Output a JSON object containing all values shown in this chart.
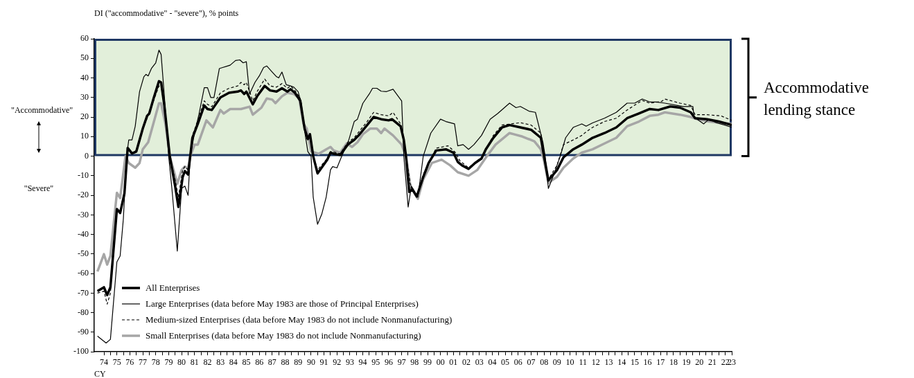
{
  "chart_data": {
    "type": "line",
    "ylabel": "DI (\"accommodative\" - \"severe\"), % points",
    "xlabel": "CY",
    "xlim": [
      "1973-10",
      "2023-01"
    ],
    "ylim": [
      -100,
      60
    ],
    "yticks": [
      -100,
      -90,
      -80,
      -70,
      -60,
      -50,
      -40,
      -30,
      -20,
      -10,
      0,
      10,
      20,
      30,
      40,
      50,
      60
    ],
    "xticks": [
      {
        "value": "1974-07",
        "label": "74"
      },
      {
        "value": "1975-01",
        "label": null
      },
      {
        "value": "1975-07",
        "label": "75"
      },
      {
        "value": "1976-01",
        "label": null
      },
      {
        "value": "1976-07",
        "label": "76"
      },
      {
        "value": "1977-01",
        "label": null
      },
      {
        "value": "1977-07",
        "label": "77"
      },
      {
        "value": "1978-01",
        "label": null
      },
      {
        "value": "1978-07",
        "label": "78"
      },
      {
        "value": "1979-01",
        "label": null
      },
      {
        "value": "1979-07",
        "label": "79"
      },
      {
        "value": "1980-01",
        "label": null
      },
      {
        "value": "1980-07",
        "label": "80"
      },
      {
        "value": "1981-01",
        "label": null
      },
      {
        "value": "1981-07",
        "label": "81"
      },
      {
        "value": "1982-01",
        "label": null
      },
      {
        "value": "1982-07",
        "label": "82"
      },
      {
        "value": "1983-01",
        "label": null
      },
      {
        "value": "1983-07",
        "label": "83"
      },
      {
        "value": "1984-01",
        "label": null
      },
      {
        "value": "1984-07",
        "label": "84"
      },
      {
        "value": "1985-01",
        "label": null
      },
      {
        "value": "1985-07",
        "label": "85"
      },
      {
        "value": "1986-01",
        "label": null
      },
      {
        "value": "1986-07",
        "label": "86"
      },
      {
        "value": "1987-01",
        "label": null
      },
      {
        "value": "1987-07",
        "label": "87"
      },
      {
        "value": "1988-01",
        "label": null
      },
      {
        "value": "1988-07",
        "label": "88"
      },
      {
        "value": "1989-01",
        "label": null
      },
      {
        "value": "1989-07",
        "label": "89"
      },
      {
        "value": "1990-01",
        "label": null
      },
      {
        "value": "1990-07",
        "label": "90"
      },
      {
        "value": "1991-01",
        "label": null
      },
      {
        "value": "1991-07",
        "label": "91"
      },
      {
        "value": "1992-01",
        "label": null
      },
      {
        "value": "1992-07",
        "label": "92"
      },
      {
        "value": "1993-01",
        "label": null
      },
      {
        "value": "1993-07",
        "label": "93"
      },
      {
        "value": "1994-01",
        "label": null
      },
      {
        "value": "1994-07",
        "label": "94"
      },
      {
        "value": "1995-01",
        "label": null
      },
      {
        "value": "1995-07",
        "label": "95"
      },
      {
        "value": "1996-01",
        "label": null
      },
      {
        "value": "1996-07",
        "label": "96"
      },
      {
        "value": "1997-01",
        "label": null
      },
      {
        "value": "1997-07",
        "label": "97"
      },
      {
        "value": "1998-01",
        "label": null
      },
      {
        "value": "1998-07",
        "label": "98"
      },
      {
        "value": "1999-01",
        "label": null
      },
      {
        "value": "1999-07",
        "label": "99"
      },
      {
        "value": "2000-01",
        "label": null
      },
      {
        "value": "2000-07",
        "label": "00"
      },
      {
        "value": "2001-01",
        "label": null
      },
      {
        "value": "2001-07",
        "label": "01"
      },
      {
        "value": "2002-01",
        "label": null
      },
      {
        "value": "2002-07",
        "label": "02"
      },
      {
        "value": "2003-01",
        "label": null
      },
      {
        "value": "2003-07",
        "label": "03"
      },
      {
        "value": "2004-01",
        "label": null
      },
      {
        "value": "2004-07",
        "label": "04"
      },
      {
        "value": "2005-01",
        "label": null
      },
      {
        "value": "2005-07",
        "label": "05"
      },
      {
        "value": "2006-01",
        "label": null
      },
      {
        "value": "2006-07",
        "label": "06"
      },
      {
        "value": "2007-01",
        "label": null
      },
      {
        "value": "2007-07",
        "label": "07"
      },
      {
        "value": "2008-01",
        "label": null
      },
      {
        "value": "2008-07",
        "label": "08"
      },
      {
        "value": "2009-01",
        "label": null
      },
      {
        "value": "2009-07",
        "label": "09"
      },
      {
        "value": "2010-01",
        "label": null
      },
      {
        "value": "2010-07",
        "label": "10"
      },
      {
        "value": "2011-01",
        "label": null
      },
      {
        "value": "2011-07",
        "label": "11"
      },
      {
        "value": "2012-01",
        "label": null
      },
      {
        "value": "2012-07",
        "label": "12"
      },
      {
        "value": "2013-01",
        "label": null
      },
      {
        "value": "2013-07",
        "label": "13"
      },
      {
        "value": "2014-01",
        "label": null
      },
      {
        "value": "2014-07",
        "label": "14"
      },
      {
        "value": "2015-01",
        "label": null
      },
      {
        "value": "2015-07",
        "label": "15"
      },
      {
        "value": "2016-01",
        "label": null
      },
      {
        "value": "2016-07",
        "label": "16"
      },
      {
        "value": "2017-01",
        "label": null
      },
      {
        "value": "2017-07",
        "label": "17"
      },
      {
        "value": "2018-01",
        "label": null
      },
      {
        "value": "2018-07",
        "label": "18"
      },
      {
        "value": "2019-01",
        "label": null
      },
      {
        "value": "2019-07",
        "label": "19"
      },
      {
        "value": "2020-01",
        "label": null
      },
      {
        "value": "2020-07",
        "label": "20"
      },
      {
        "value": "2021-01",
        "label": null
      },
      {
        "value": "2021-07",
        "label": "21"
      },
      {
        "value": "2022-01",
        "label": null
      },
      {
        "value": "2022-07",
        "label": "22"
      },
      {
        "value": "2023-01",
        "label": "23"
      }
    ],
    "legend": "bottom left",
    "bands": [
      {
        "axis": "y",
        "from": 0,
        "to": 60,
        "label": "Accommodative lending stance",
        "color": "#e2efda"
      }
    ],
    "annotations": [
      "\"Accommodative\"",
      "\"Severe\""
    ],
    "series": [
      {
        "name": "All Enterprises",
        "color": "#000000",
        "line_style": "solid",
        "x": [
          "1974-01",
          "1974-07",
          "1974-10",
          "1975-01",
          "1975-07",
          "1975-10",
          "1976-02",
          "1976-05",
          "1976-09",
          "1977-01",
          "1977-07",
          "1977-11",
          "1978-01",
          "1978-05",
          "1978-10",
          "1978-12",
          "1979-03",
          "1979-08",
          "1980-01",
          "1980-04",
          "1980-08",
          "1980-10",
          "1981-01",
          "1981-03",
          "1981-05",
          "1981-10",
          "1982-04",
          "1982-07",
          "1982-11",
          "1983-07",
          "1984-03",
          "1984-11",
          "1985-02",
          "1985-05",
          "1985-07",
          "1986-01",
          "1986-05",
          "1986-12",
          "1987-05",
          "1987-11",
          "1988-04",
          "1988-09",
          "1988-12",
          "1989-04",
          "1989-09",
          "1990-01",
          "1990-04",
          "1990-06",
          "1990-09",
          "1991-01",
          "1991-10",
          "1992-01",
          "1992-04",
          "1992-10",
          "1993-05",
          "1993-11",
          "1994-04",
          "1994-11",
          "1995-05",
          "1995-12",
          "1996-07",
          "1996-10",
          "1997-06",
          "1997-09",
          "1997-11",
          "1998-02",
          "1998-05",
          "1998-09",
          "1999-03",
          "1999-08",
          "2000-03",
          "2000-12",
          "2001-07",
          "2001-11",
          "2002-03",
          "2002-09",
          "2003-03",
          "2003-09",
          "2004-01",
          "2004-08",
          "2005-04",
          "2005-11",
          "2006-09",
          "2007-07",
          "2008-04",
          "2008-07",
          "2008-11",
          "2009-07",
          "2010-01",
          "2010-10",
          "2011-06",
          "2012-04",
          "2013-03",
          "2014-02",
          "2014-12",
          "2015-11",
          "2016-09",
          "2017-05",
          "2018-04",
          "2019-01",
          "2019-11",
          "2020-03",
          "2021-02",
          "2022-01",
          "2023-01"
        ],
        "values": [
          -69,
          -67,
          -71,
          -67,
          -27,
          -29,
          -19,
          4.2,
          1.4,
          2.4,
          14.1,
          20.6,
          21.8,
          29.5,
          38.3,
          37.7,
          25.9,
          0,
          -15.3,
          -26,
          -10.6,
          -7.6,
          -9.4,
          0,
          9.4,
          16.5,
          25.9,
          24.1,
          23.6,
          30,
          32.4,
          33,
          33.6,
          31.8,
          33,
          26.5,
          30.6,
          35.9,
          33.6,
          33,
          34.7,
          33,
          34.2,
          32.4,
          28.3,
          14.1,
          8.8,
          11.2,
          0,
          -8.8,
          -1.8,
          1.8,
          1.2,
          0.6,
          5.9,
          8.3,
          11.2,
          15.9,
          20,
          18.9,
          18.3,
          18.9,
          15.3,
          8.3,
          0,
          -18.3,
          -17,
          -20.6,
          -10.6,
          -3.5,
          2.9,
          3.5,
          1.8,
          -2.9,
          -4.7,
          -6.5,
          -3.5,
          -1.2,
          3.5,
          9.4,
          14.7,
          15.9,
          14.7,
          13.5,
          9.4,
          0,
          -12.4,
          -7.1,
          -0.6,
          3.5,
          5.9,
          9.4,
          11.8,
          14.7,
          19.4,
          21.8,
          24.1,
          23.6,
          25.4,
          24.8,
          22.4,
          19.4,
          18.9,
          17.7,
          15.9
        ]
      },
      {
        "name": "Large Enterprises (data before May 1983 are those of Principal Enterprises)",
        "color": "#000000",
        "line_style": "solid",
        "x": [
          "1974-01",
          "1974-09",
          "1975-01",
          "1975-07",
          "1975-10",
          "1976-01",
          "1976-04",
          "1976-06",
          "1976-09",
          "1976-12",
          "1977-04",
          "1977-08",
          "1977-10",
          "1977-12",
          "1978-03",
          "1978-07",
          "1978-10",
          "1978-12",
          "1979-03",
          "1979-07",
          "1979-10",
          "1980-03",
          "1980-07",
          "1980-10",
          "1981-01",
          "1981-03",
          "1981-07",
          "1981-11",
          "1982-04",
          "1982-07",
          "1982-10",
          "1983-01",
          "1983-06",
          "1983-09",
          "1984-01",
          "1984-04",
          "1984-09",
          "1985-01",
          "1985-04",
          "1985-07",
          "1985-10",
          "1986-03",
          "1986-07",
          "1986-11",
          "1987-02",
          "1987-07",
          "1987-11",
          "1988-01",
          "1988-04",
          "1988-08",
          "1988-12",
          "1989-03",
          "1989-07",
          "1989-10",
          "1990-01",
          "1990-04",
          "1990-07",
          "1990-09",
          "1991-01",
          "1991-05",
          "1991-09",
          "1992-01",
          "1992-03",
          "1992-07",
          "1992-11",
          "1993-06",
          "1993-11",
          "1994-02",
          "1994-07",
          "1995-01",
          "1995-04",
          "1995-08",
          "1995-12",
          "1996-05",
          "1996-11",
          "1997-07",
          "1997-09",
          "1998-01",
          "1998-04",
          "1998-10",
          "1999-03",
          "1999-10",
          "2000-07",
          "2000-12",
          "2001-08",
          "2001-11",
          "2002-04",
          "2002-09",
          "2003-02",
          "2003-09",
          "2004-05",
          "2004-12",
          "2005-11",
          "2006-05",
          "2006-09",
          "2007-05",
          "2007-11",
          "2008-06",
          "2008-08",
          "2008-11",
          "2009-04",
          "2009-10",
          "2010-03",
          "2010-10",
          "2011-06",
          "2011-10",
          "2012-04",
          "2013-03",
          "2014-02",
          "2014-12",
          "2015-07",
          "2016-02",
          "2016-09",
          "2017-03",
          "2017-11",
          "2019-04",
          "2020-01",
          "2020-02",
          "2020-11",
          "2021-04",
          "2021-11",
          "2022-07",
          "2023-01"
        ],
        "values": [
          -92,
          -95.5,
          -93.6,
          -54,
          -51,
          -32,
          0,
          8.3,
          8.3,
          15.3,
          33,
          40.6,
          41.8,
          41,
          44.8,
          47.7,
          54.2,
          52,
          30.7,
          0,
          -16.5,
          -48.5,
          -16.5,
          -15.3,
          -20,
          0,
          11.8,
          21.2,
          35,
          35,
          30,
          30,
          44.8,
          45.3,
          46,
          46.5,
          48.9,
          49.2,
          47.7,
          48.3,
          31.8,
          37.7,
          41,
          45.3,
          46.1,
          43,
          40.6,
          40,
          43,
          36.5,
          35.9,
          35.3,
          33,
          27,
          13,
          2.4,
          0,
          -21,
          -34.8,
          -29.5,
          -21,
          -7,
          -5.3,
          -6,
          -0.6,
          8.3,
          17.7,
          18.9,
          27,
          31.8,
          34.7,
          34.7,
          33.2,
          33,
          34.2,
          28.2,
          0,
          -26,
          -15.3,
          -21,
          0,
          11.8,
          18.9,
          17.7,
          16.5,
          5.3,
          5.9,
          3.5,
          5.9,
          10.6,
          18.9,
          21.8,
          27.1,
          24.8,
          25.4,
          23,
          22.4,
          7,
          0,
          -16.5,
          -9.4,
          0,
          9.4,
          14.7,
          16.5,
          15.3,
          17,
          19.4,
          22.4,
          27.1,
          27.1,
          29.2,
          27.7,
          27.7,
          27.1,
          25.4,
          25.4,
          20,
          16.5,
          18.9,
          17,
          15.8,
          14.7
        ]
      },
      {
        "name": "Medium-sized Enterprises (data before May 1983 do not include Nonmanufacturing)",
        "color": "#000000",
        "line_style": "dashed",
        "x": [
          "1974-01",
          "1974-07",
          "1974-10",
          "1975-01",
          "1975-07",
          "1975-10",
          "1976-02",
          "1976-05",
          "1976-09",
          "1977-01",
          "1977-07",
          "1977-11",
          "1978-05",
          "1978-10",
          "1978-12",
          "1979-03",
          "1979-08",
          "1980-01",
          "1980-04",
          "1980-08",
          "1980-10",
          "1981-01",
          "1981-03",
          "1981-05",
          "1981-10",
          "1982-04",
          "1982-07",
          "1982-11",
          "1983-07",
          "1984-03",
          "1984-11",
          "1985-02",
          "1985-05",
          "1985-07",
          "1986-01",
          "1986-05",
          "1986-12",
          "1987-05",
          "1987-11",
          "1988-04",
          "1988-09",
          "1988-12",
          "1989-04",
          "1989-09",
          "1990-01",
          "1990-04",
          "1990-06",
          "1990-09",
          "1991-01",
          "1991-10",
          "1992-01",
          "1992-07",
          "1992-10",
          "1993-05",
          "1993-11",
          "1994-04",
          "1994-11",
          "1995-05",
          "1995-12",
          "1996-07",
          "1996-11",
          "1997-06",
          "1997-09",
          "1997-11",
          "1998-03",
          "1998-05",
          "1998-09",
          "1999-03",
          "2000-03",
          "2001-02",
          "2001-09",
          "2002-01",
          "2002-09",
          "2003-09",
          "2004-08",
          "2005-04",
          "2006-09",
          "2007-07",
          "2008-04",
          "2008-07",
          "2008-11",
          "2009-07",
          "2010-01",
          "2010-10",
          "2011-06",
          "2011-10",
          "2012-04",
          "2013-03",
          "2014-02",
          "2014-12",
          "2016-02",
          "2016-09",
          "2017-08",
          "2017-11",
          "2019-01",
          "2019-11",
          "2020-03",
          "2021-02",
          "2022-03",
          "2023-01"
        ],
        "values": [
          -70,
          -69,
          -75.6,
          -70,
          -28,
          -28,
          -18,
          3.5,
          1.4,
          3,
          14,
          19.4,
          28.3,
          35.9,
          35.3,
          25,
          0,
          -12,
          -21,
          -7,
          -5.3,
          -7,
          0,
          10.6,
          18.3,
          28.3,
          26.5,
          25.3,
          32.4,
          34.7,
          35.9,
          37.7,
          36.5,
          37.7,
          28.3,
          33,
          39.4,
          35.9,
          35.3,
          37.1,
          34.7,
          35.9,
          33.6,
          29.5,
          13,
          8,
          11,
          0,
          -7,
          -1.2,
          2.4,
          1.8,
          1.2,
          7,
          9.4,
          12.9,
          17.7,
          22.4,
          21.2,
          20.6,
          22.4,
          16.5,
          9.4,
          0,
          -14.1,
          -16.5,
          -20.6,
          -9.4,
          4.1,
          5.3,
          1.8,
          -2.4,
          -5.9,
          -0.6,
          10.6,
          15.9,
          17.1,
          15.9,
          11.8,
          0,
          -11.8,
          -4.7,
          5.9,
          8.3,
          10.6,
          12.4,
          14.7,
          17.7,
          19.4,
          23.6,
          28.5,
          27.1,
          28,
          29.2,
          27.1,
          25.9,
          21.2,
          21.2,
          20.6,
          18.3
        ]
      },
      {
        "name": "Small Enterprises (data before May 1983 do not include Nonmanufacturing)",
        "color": "#a6a6a6",
        "line_style": "solid",
        "x": [
          "1974-01",
          "1974-07",
          "1974-10",
          "1975-01",
          "1975-07",
          "1975-10",
          "1976-03",
          "1976-06",
          "1976-12",
          "1977-04",
          "1977-07",
          "1977-12",
          "1978-05",
          "1978-10",
          "1978-12",
          "1979-04",
          "1979-08",
          "1980-03",
          "1980-07",
          "1980-10",
          "1981-01",
          "1981-03",
          "1981-07",
          "1981-10",
          "1982-06",
          "1982-12",
          "1983-07",
          "1983-10",
          "1984-04",
          "1985-02",
          "1985-10",
          "1986-01",
          "1986-09",
          "1987-02",
          "1987-07",
          "1987-10",
          "1988-04",
          "1988-09",
          "1989-03",
          "1989-08",
          "1989-12",
          "1990-03",
          "1990-07",
          "1991-02",
          "1991-09",
          "1992-01",
          "1992-04",
          "1992-10",
          "1993-04",
          "1993-09",
          "1994-02",
          "1994-07",
          "1995-02",
          "1995-08",
          "1995-12",
          "1996-03",
          "1996-11",
          "1997-07",
          "1997-11",
          "1998-03",
          "1998-10",
          "1999-03",
          "1999-11",
          "2000-08",
          "2001-04",
          "2001-11",
          "2002-09",
          "2003-05",
          "2004-02",
          "2004-10",
          "2005-11",
          "2006-03",
          "2006-11",
          "2007-10",
          "2008-04",
          "2008-07",
          "2008-11",
          "2009-07",
          "2010-01",
          "2010-10",
          "2011-06",
          "2012-04",
          "2013-03",
          "2014-02",
          "2014-12",
          "2015-11",
          "2016-09",
          "2017-05",
          "2017-11",
          "2019-01",
          "2019-11",
          "2020-05",
          "2021-04",
          "2022-03",
          "2023-01"
        ],
        "values": [
          -58.9,
          -50.1,
          -55.4,
          -51,
          -18.7,
          -21.4,
          0,
          -3.5,
          -5.9,
          -3.5,
          3.5,
          7.1,
          17,
          27,
          27,
          16.5,
          0,
          -14.1,
          -7.1,
          -5.3,
          -6.5,
          0,
          5.9,
          5.9,
          18.3,
          14.7,
          23.6,
          21.8,
          24.1,
          24.1,
          25.3,
          21.2,
          24.8,
          29.5,
          28.9,
          27.1,
          30.6,
          32.4,
          31.8,
          29.5,
          16.5,
          14.1,
          2.4,
          1.2,
          3.5,
          4.7,
          2.9,
          1.8,
          6.5,
          4.7,
          7.1,
          11.2,
          14.1,
          14.1,
          11.8,
          14.1,
          10.6,
          5.9,
          0,
          -15.3,
          -21.8,
          -11.8,
          -3.5,
          -1.8,
          -4.7,
          -8.2,
          -10,
          -7.1,
          0,
          5.9,
          11.8,
          11.2,
          10,
          7.6,
          3.5,
          -2.4,
          -13.6,
          -10.6,
          -5.9,
          -1.2,
          1.8,
          3.5,
          6.5,
          9.4,
          15.3,
          17.7,
          20.6,
          21.2,
          22.4,
          21.2,
          20,
          18.9,
          17.7,
          17,
          16.5
        ]
      }
    ]
  }
}
